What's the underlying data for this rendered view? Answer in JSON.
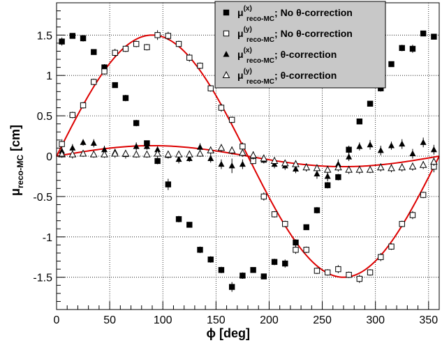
{
  "chart_data": {
    "type": "scatter",
    "xlabel": "ϕ [deg]",
    "ylabel": "μ",
    "ylabel_sub": "reco-MC",
    "ylabel_unit": " [cm]",
    "xlim": [
      0,
      360
    ],
    "ylim": [
      -1.9,
      1.9
    ],
    "xticks": [
      0,
      50,
      100,
      150,
      200,
      250,
      300,
      350
    ],
    "yticks": [
      -1.5,
      -1,
      -0.5,
      0,
      0.5,
      1,
      1.5
    ],
    "ytick_labels": [
      "-1.5",
      "-1",
      "-0.5",
      "0",
      "0.5",
      "1",
      "1.5"
    ],
    "grid": true,
    "legend_position": "top-right",
    "legend_bg": "#c8c8c8",
    "fit_color": "#dd0000",
    "x": [
      5,
      15,
      25,
      35,
      45,
      55,
      65,
      75,
      85,
      95,
      105,
      115,
      125,
      135,
      145,
      155,
      165,
      175,
      185,
      195,
      205,
      215,
      225,
      235,
      245,
      255,
      265,
      275,
      285,
      295,
      305,
      315,
      325,
      335,
      345,
      355
    ],
    "series": [
      {
        "name": "μ(x) reco-MC; No θ-correction",
        "label": {
          "sup": "(x)",
          "sub": "reco-MC",
          "text": "; No θ-correction"
        },
        "marker": "filled-square",
        "values": [
          1.42,
          1.49,
          1.46,
          1.29,
          1.1,
          0.88,
          0.72,
          0.41,
          0.16,
          -0.06,
          -0.35,
          -0.78,
          -0.85,
          -1.16,
          -1.28,
          -1.41,
          -1.62,
          -1.48,
          -1.41,
          -1.49,
          -1.31,
          -1.33,
          -1.07,
          -0.88,
          -0.67,
          -0.36,
          -0.26,
          0.08,
          0.43,
          0.65,
          0.84,
          1.14,
          1.34,
          1.33,
          1.52,
          1.48
        ],
        "errors": [
          0.05,
          0.03,
          0.04,
          0.03,
          0.04,
          0.03,
          0.04,
          0.04,
          0.03,
          0.04,
          0.07,
          0.04,
          0.03,
          0.04,
          0.04,
          0.04,
          0.06,
          0.04,
          0.03,
          0.03,
          0.04,
          0.05,
          0.04,
          0.03,
          0.04,
          0.04,
          0.04,
          0.05,
          0.03,
          0.03,
          0.04,
          0.03,
          0.04,
          0.05,
          0.03,
          0.03
        ]
      },
      {
        "name": "μ(y) reco-MC; No θ-correction",
        "label": {
          "sup": "(y)",
          "sub": "reco-MC",
          "text": "; No θ-correction"
        },
        "marker": "open-square",
        "values": [
          0.15,
          0.51,
          0.63,
          0.92,
          1.05,
          1.28,
          1.33,
          1.39,
          1.35,
          1.5,
          1.49,
          1.39,
          1.22,
          1.12,
          0.84,
          0.6,
          0.45,
          0.12,
          -0.06,
          -0.5,
          -0.72,
          -0.84,
          -1.16,
          -1.16,
          -1.42,
          -1.44,
          -1.4,
          -1.47,
          -1.52,
          -1.44,
          -1.25,
          -1.12,
          -0.84,
          -0.73,
          -0.48,
          -0.13
        ],
        "errors": [
          0.06,
          0.04,
          0.04,
          0.04,
          0.04,
          0.05,
          0.04,
          0.04,
          0.04,
          0.06,
          0.05,
          0.04,
          0.05,
          0.04,
          0.04,
          0.05,
          0.04,
          0.05,
          0.04,
          0.05,
          0.04,
          0.04,
          0.05,
          0.04,
          0.04,
          0.04,
          0.05,
          0.04,
          0.05,
          0.04,
          0.05,
          0.04,
          0.04,
          0.05,
          0.04,
          0.07
        ]
      },
      {
        "name": "μ(x) reco-MC; θ-correction",
        "label": {
          "sup": "(x)",
          "sub": "reco-MC",
          "text": "; θ-correction"
        },
        "marker": "filled-triangle",
        "values": [
          0.06,
          0.1,
          0.17,
          0.16,
          0.08,
          0.05,
          0.02,
          0.12,
          0.12,
          0.08,
          0.01,
          -0.04,
          -0.03,
          0.11,
          -0.03,
          -0.1,
          -0.12,
          -0.1,
          0.01,
          -0.05,
          -0.1,
          -0.12,
          -0.16,
          -0.14,
          -0.22,
          -0.25,
          -0.1,
          -0.01,
          0.12,
          0.14,
          0.07,
          0.13,
          0.15,
          0.03,
          0.17,
          0.08
        ],
        "errors": [
          0.04,
          0.05,
          0.04,
          0.05,
          0.05,
          0.04,
          0.05,
          0.05,
          0.04,
          0.04,
          0.04,
          0.05,
          0.04,
          0.05,
          0.05,
          0.06,
          0.09,
          0.06,
          0.05,
          0.04,
          0.05,
          0.05,
          0.05,
          0.05,
          0.06,
          0.06,
          0.06,
          0.05,
          0.05,
          0.06,
          0.06,
          0.05,
          0.06,
          0.06,
          0.06,
          0.06
        ]
      },
      {
        "name": "μ(y) reco-MC; θ-correction",
        "label": {
          "sup": "(y)",
          "sub": "reco-MC",
          "text": "; θ-correction"
        },
        "marker": "open-triangle",
        "values": [
          0.02,
          0.02,
          0.03,
          0.02,
          0.02,
          0.03,
          0.03,
          0.02,
          0.02,
          0.03,
          0.02,
          0.02,
          0.02,
          0.03,
          0.07,
          0.1,
          0.07,
          0.04,
          0.01,
          -0.03,
          -0.06,
          -0.09,
          -0.1,
          -0.14,
          -0.15,
          -0.17,
          -0.14,
          -0.17,
          -0.17,
          -0.17,
          -0.14,
          -0.15,
          -0.14,
          -0.13,
          -0.11,
          -0.07
        ],
        "errors": [
          0.04,
          0.05,
          0.04,
          0.04,
          0.04,
          0.05,
          0.04,
          0.04,
          0.04,
          0.05,
          0.04,
          0.04,
          0.05,
          0.04,
          0.05,
          0.05,
          0.05,
          0.05,
          0.04,
          0.05,
          0.05,
          0.04,
          0.05,
          0.05,
          0.04,
          0.05,
          0.05,
          0.05,
          0.05,
          0.04,
          0.05,
          0.05,
          0.05,
          0.05,
          0.05,
          0.05
        ]
      }
    ],
    "fit_curves": [
      {
        "function": "A*sin(phi)",
        "amplitude": 1.5
      },
      {
        "function": "A*sin(phi)",
        "amplitude": 0.13
      }
    ]
  }
}
